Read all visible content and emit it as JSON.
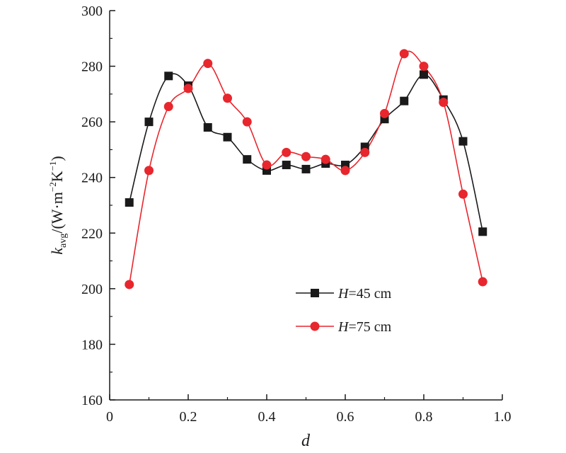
{
  "chart_data": {
    "type": "line",
    "xlabel": "d",
    "ylabel": {
      "k": "k",
      "sub": "avg",
      "unit_open": "/(W·m",
      "exp1": "−2",
      "unit_mid": "K",
      "exp2": "−1",
      "unit_close": ")"
    },
    "xlim": [
      0,
      1.0
    ],
    "ylim": [
      160,
      300
    ],
    "xticks": [
      0,
      0.2,
      0.4,
      0.6,
      0.8,
      1.0
    ],
    "xtick_labels": [
      "0",
      "0.2",
      "0.4",
      "0.6",
      "0.8",
      "1.0"
    ],
    "yticks": [
      160,
      180,
      200,
      220,
      240,
      260,
      280,
      300
    ],
    "ytick_labels": [
      "160",
      "180",
      "200",
      "220",
      "240",
      "260",
      "280",
      "300"
    ],
    "grid": false,
    "legend_position": "center-right",
    "series": [
      {
        "name": "H=45 cm",
        "name_var": "H",
        "name_rest": "=45 cm",
        "color": "#1a1a1a",
        "marker": "square",
        "x": [
          0.05,
          0.1,
          0.15,
          0.2,
          0.25,
          0.3,
          0.35,
          0.4,
          0.45,
          0.5,
          0.55,
          0.6,
          0.65,
          0.7,
          0.75,
          0.8,
          0.85,
          0.9,
          0.95
        ],
        "y": [
          231,
          260,
          276.5,
          273,
          258,
          254.5,
          246.5,
          242.5,
          244.5,
          243,
          245,
          244.5,
          251,
          261,
          267.5,
          277,
          268,
          253,
          220.5
        ]
      },
      {
        "name": "H=75 cm",
        "name_var": "H",
        "name_rest": "=75 cm",
        "color": "#e8262d",
        "marker": "circle",
        "x": [
          0.05,
          0.1,
          0.15,
          0.2,
          0.25,
          0.3,
          0.35,
          0.4,
          0.45,
          0.5,
          0.55,
          0.6,
          0.65,
          0.7,
          0.75,
          0.8,
          0.85,
          0.9,
          0.95
        ],
        "y": [
          201.5,
          242.5,
          265.5,
          272,
          281,
          268.5,
          260,
          244.5,
          249,
          247.5,
          246.5,
          242.5,
          249,
          263,
          284.5,
          280,
          267,
          234,
          202.5
        ]
      }
    ]
  }
}
